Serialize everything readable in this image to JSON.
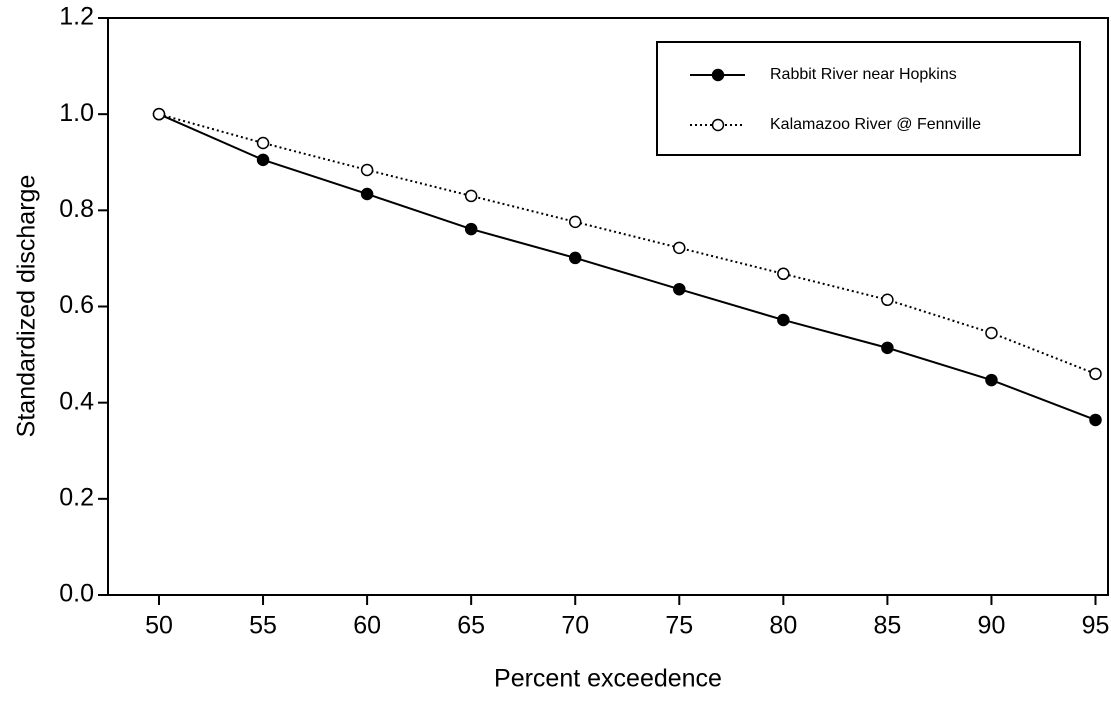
{
  "chart_data": {
    "type": "line",
    "x_label": "Percent exceedence",
    "y_label": "Standardized discharge",
    "x": [
      50,
      55,
      60,
      65,
      70,
      75,
      80,
      85,
      90,
      95
    ],
    "series": [
      {
        "name": "Rabbit River near Hopkins",
        "color": "#000000",
        "linestyle": "solid",
        "marker": "filled",
        "values": [
          1.0,
          0.905,
          0.834,
          0.761,
          0.701,
          0.636,
          0.572,
          0.514,
          0.447,
          0.364
        ]
      },
      {
        "name": "Kalamazoo River @ Fennville",
        "color": "#000000",
        "linestyle": "dotted",
        "marker": "open",
        "values": [
          1.0,
          0.94,
          0.884,
          0.83,
          0.776,
          0.722,
          0.668,
          0.614,
          0.545,
          0.46
        ]
      }
    ],
    "xlim": [
      47.55,
      95.6
    ],
    "ylim": [
      0,
      1.2
    ],
    "xticks": [
      50,
      55,
      60,
      65,
      70,
      75,
      80,
      85,
      90,
      95
    ],
    "yticks": [
      {
        "value": 0,
        "label": "0.0"
      },
      {
        "value": 0.2,
        "label": "0.2"
      },
      {
        "value": 0.4,
        "label": "0.4"
      },
      {
        "value": 0.6,
        "label": "0.6"
      },
      {
        "value": 0.8,
        "label": "0.8"
      },
      {
        "value": 1.0,
        "label": "1.0"
      },
      {
        "value": 1.2,
        "label": "1.2"
      }
    ],
    "grid": false,
    "legend": "upper right"
  }
}
